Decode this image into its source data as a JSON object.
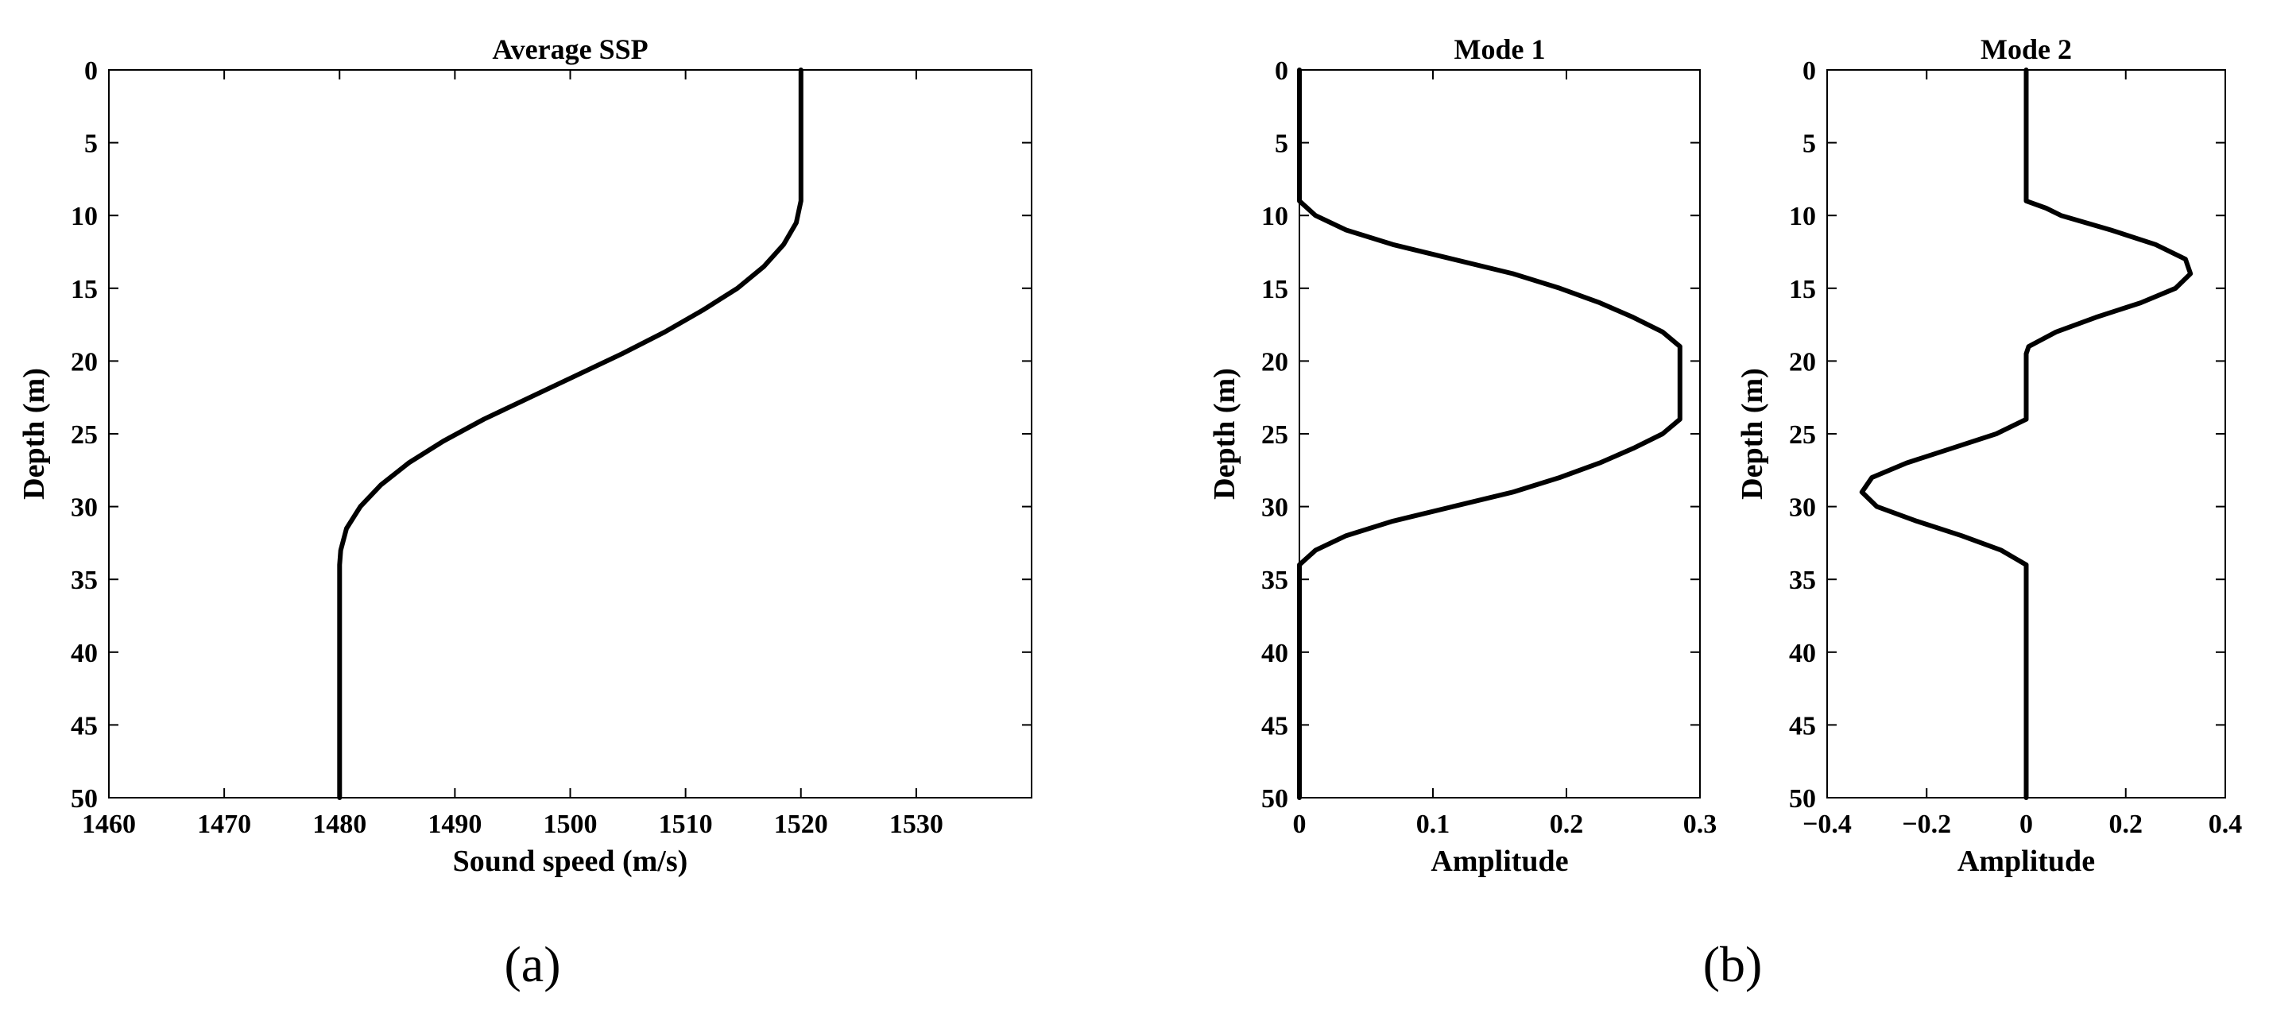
{
  "panel_labels": [
    "(a)",
    "(b)"
  ],
  "chart_data": [
    {
      "type": "line",
      "title": "Average SSP",
      "xlabel": "Sound speed (m/s)",
      "ylabel": "Depth (m)",
      "xlim": [
        1460,
        1540
      ],
      "ylim": [
        0,
        50
      ],
      "y_reversed": true,
      "xticks": [
        1460,
        1470,
        1480,
        1490,
        1500,
        1510,
        1520,
        1530
      ],
      "yticks": [
        0,
        5,
        10,
        15,
        20,
        25,
        30,
        35,
        40,
        45,
        50
      ],
      "grid": false,
      "series": [
        {
          "color": "#000000",
          "points": [
            [
              1520,
              0
            ],
            [
              1520,
              9
            ],
            [
              1519.6,
              10.5
            ],
            [
              1518.5,
              12
            ],
            [
              1516.8,
              13.5
            ],
            [
              1514.5,
              15
            ],
            [
              1511.5,
              16.5
            ],
            [
              1508.2,
              18
            ],
            [
              1504.5,
              19.5
            ],
            [
              1500.5,
              21
            ],
            [
              1496.5,
              22.5
            ],
            [
              1492.5,
              24
            ],
            [
              1489,
              25.5
            ],
            [
              1486,
              27
            ],
            [
              1483.6,
              28.5
            ],
            [
              1481.8,
              30
            ],
            [
              1480.6,
              31.5
            ],
            [
              1480.1,
              33
            ],
            [
              1480,
              34
            ],
            [
              1480,
              50
            ]
          ]
        }
      ]
    },
    {
      "type": "line",
      "title": "Mode 1",
      "xlabel": "Amplitude",
      "ylabel": "Depth (m)",
      "xlim": [
        0,
        0.3
      ],
      "ylim": [
        0,
        50
      ],
      "y_reversed": true,
      "xticks": [
        0,
        0.1,
        0.2,
        0.3
      ],
      "yticks": [
        0,
        5,
        10,
        15,
        20,
        25,
        30,
        35,
        40,
        45,
        50
      ],
      "grid": false,
      "series": [
        {
          "color": "#000000",
          "points": [
            [
              0,
              0
            ],
            [
              0,
              9
            ],
            [
              0.012,
              10
            ],
            [
              0.035,
              11
            ],
            [
              0.07,
              12
            ],
            [
              0.115,
              13
            ],
            [
              0.16,
              14
            ],
            [
              0.195,
              15
            ],
            [
              0.225,
              16
            ],
            [
              0.25,
              17
            ],
            [
              0.272,
              18
            ],
            [
              0.285,
              19
            ],
            [
              0.285,
              24
            ],
            [
              0.272,
              25
            ],
            [
              0.25,
              26
            ],
            [
              0.225,
              27
            ],
            [
              0.195,
              28
            ],
            [
              0.16,
              29
            ],
            [
              0.115,
              30
            ],
            [
              0.07,
              31
            ],
            [
              0.035,
              32
            ],
            [
              0.012,
              33
            ],
            [
              0,
              34
            ],
            [
              0,
              50
            ]
          ]
        }
      ]
    },
    {
      "type": "line",
      "title": "Mode 2",
      "xlabel": "Amplitude",
      "ylabel": "Depth (m)",
      "xlim": [
        -0.4,
        0.4
      ],
      "ylim": [
        0,
        50
      ],
      "y_reversed": true,
      "xticks": [
        -0.4,
        -0.2,
        0,
        0.2,
        0.4
      ],
      "xticklabels": [
        "−0.4",
        "−0.2",
        "0",
        "0.2",
        "0.4"
      ],
      "yticks": [
        0,
        5,
        10,
        15,
        20,
        25,
        30,
        35,
        40,
        45,
        50
      ],
      "grid": false,
      "series": [
        {
          "color": "#000000",
          "points": [
            [
              0,
              0
            ],
            [
              0,
              9
            ],
            [
              0.04,
              9.5
            ],
            [
              0.07,
              10
            ],
            [
              0.17,
              11
            ],
            [
              0.26,
              12
            ],
            [
              0.32,
              13
            ],
            [
              0.33,
              14
            ],
            [
              0.3,
              15
            ],
            [
              0.23,
              16
            ],
            [
              0.14,
              17
            ],
            [
              0.06,
              18
            ],
            [
              0.005,
              19
            ],
            [
              0,
              19.5
            ],
            [
              0,
              24
            ],
            [
              -0.06,
              25
            ],
            [
              -0.15,
              26
            ],
            [
              -0.24,
              27
            ],
            [
              -0.31,
              28
            ],
            [
              -0.33,
              29
            ],
            [
              -0.3,
              30
            ],
            [
              -0.22,
              31
            ],
            [
              -0.13,
              32
            ],
            [
              -0.05,
              33
            ],
            [
              0,
              34
            ],
            [
              0,
              50
            ]
          ]
        }
      ]
    }
  ]
}
